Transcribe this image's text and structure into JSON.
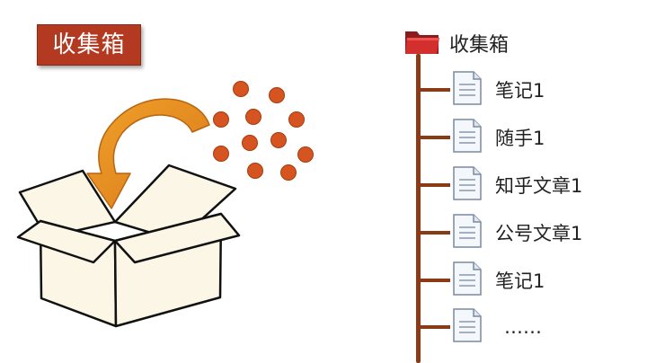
{
  "title": "收集箱",
  "folder": {
    "label": "收集箱",
    "icon": "folder-icon"
  },
  "items": [
    {
      "label": "笔记1",
      "icon": "document-icon"
    },
    {
      "label": "随手1",
      "icon": "document-icon"
    },
    {
      "label": "知乎文章1",
      "icon": "document-icon"
    },
    {
      "label": "公号文章1",
      "icon": "document-icon"
    },
    {
      "label": "笔记1",
      "icon": "document-icon"
    },
    {
      "label": "……",
      "icon": "document-icon"
    }
  ],
  "colors": {
    "badge": "#b33a21",
    "dots": "#d5541f",
    "arrow": "#e8891a",
    "box": "#fbf6e6",
    "tree": "#8b3a16",
    "folder": "#c62828"
  }
}
